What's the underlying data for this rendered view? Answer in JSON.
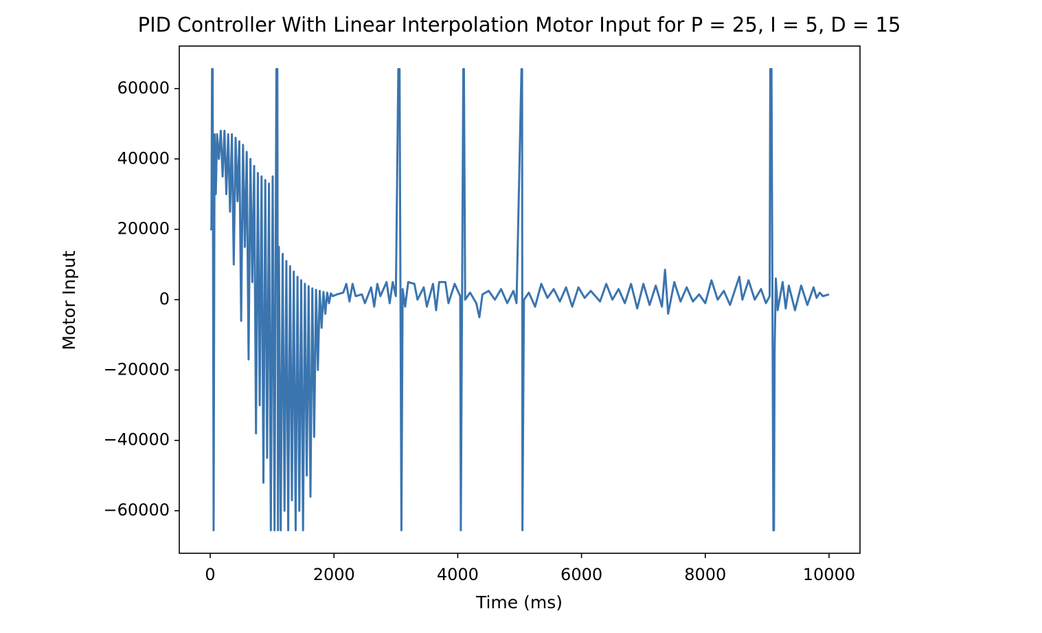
{
  "chart_data": {
    "type": "line",
    "title": "PID Controller With Linear Interpolation Motor Input for P = 25, I = 5, D = 15",
    "xlabel": "Time (ms)",
    "ylabel": "Motor Input",
    "color": "#3b75af",
    "xlim": [
      -500,
      10500
    ],
    "ylim": [
      -72089,
      72089
    ],
    "xticks": [
      0,
      2000,
      4000,
      6000,
      8000,
      10000
    ],
    "yticks": [
      {
        "value": -60000,
        "label": "−60000"
      },
      {
        "value": -40000,
        "label": "−40000"
      },
      {
        "value": -20000,
        "label": "−20000"
      },
      0,
      20000,
      40000,
      60000
    ],
    "x": [
      0,
      20,
      30,
      40,
      55,
      70,
      90,
      110,
      140,
      170,
      200,
      230,
      260,
      290,
      320,
      350,
      380,
      410,
      440,
      470,
      500,
      530,
      560,
      590,
      620,
      650,
      680,
      710,
      740,
      770,
      800,
      830,
      860,
      890,
      920,
      950,
      980,
      1010,
      1040,
      1070,
      1085,
      1095,
      1110,
      1140,
      1170,
      1200,
      1230,
      1260,
      1290,
      1320,
      1350,
      1380,
      1410,
      1440,
      1470,
      1500,
      1530,
      1560,
      1590,
      1620,
      1650,
      1680,
      1710,
      1740,
      1770,
      1800,
      1830,
      1860,
      1890,
      1920,
      1950,
      1980,
      2050,
      2150,
      2200,
      2250,
      2300,
      2350,
      2450,
      2500,
      2600,
      2650,
      2700,
      2750,
      2850,
      2900,
      2950,
      3000,
      3040,
      3060,
      3090,
      3110,
      3150,
      3200,
      3300,
      3350,
      3450,
      3500,
      3600,
      3650,
      3700,
      3800,
      3850,
      3950,
      4040,
      4050,
      4090,
      4100,
      4120,
      4200,
      4300,
      4350,
      4400,
      4500,
      4600,
      4700,
      4800,
      4900,
      4950,
      5030,
      5040,
      5045,
      5070,
      5150,
      5250,
      5350,
      5450,
      5550,
      5650,
      5750,
      5850,
      5950,
      6050,
      6150,
      6300,
      6400,
      6500,
      6600,
      6700,
      6800,
      6900,
      7000,
      7100,
      7200,
      7300,
      7350,
      7400,
      7500,
      7600,
      7700,
      7800,
      7900,
      8000,
      8100,
      8200,
      8300,
      8400,
      8550,
      8600,
      8700,
      8800,
      8900,
      8980,
      9040,
      9050,
      9070,
      9100,
      9110,
      9120,
      9140,
      9170,
      9250,
      9300,
      9350,
      9450,
      9550,
      9650,
      9750,
      9800,
      9850,
      9900,
      10000
    ],
    "y": [
      20000,
      20000,
      65535,
      65535,
      -65535,
      47000,
      30000,
      47000,
      40000,
      48000,
      35000,
      48000,
      30000,
      47000,
      25000,
      47000,
      10000,
      46000,
      28000,
      45000,
      -6000,
      44000,
      15000,
      42000,
      -17000,
      40000,
      5000,
      38000,
      -38000,
      36000,
      -30000,
      35000,
      -52000,
      34000,
      -45000,
      33000,
      -65535,
      35000,
      -65535,
      65535,
      65535,
      -65535,
      15000,
      -65535,
      13000,
      -60000,
      11000,
      -65535,
      9500,
      -57000,
      8000,
      -65535,
      6500,
      -60000,
      5500,
      -65535,
      4500,
      -50000,
      3800,
      -56000,
      3200,
      -39000,
      2800,
      -20000,
      2500,
      -8000,
      2200,
      -4000,
      2000,
      -1000,
      1800,
      1000,
      1500,
      2000,
      4500,
      -500,
      4500,
      1000,
      1500,
      -1000,
      3500,
      -2000,
      4500,
      1000,
      5000,
      -1000,
      5000,
      1000,
      65535,
      65535,
      -65535,
      3000,
      -2000,
      5000,
      4500,
      0,
      3500,
      -2000,
      4500,
      -3000,
      5000,
      5000,
      -1000,
      4500,
      1000,
      -65535,
      65535,
      65535,
      0,
      2000,
      -1000,
      -5000,
      1500,
      2500,
      0,
      3000,
      -1000,
      2500,
      -1000,
      65535,
      65535,
      -65535,
      0,
      2000,
      -2000,
      4500,
      500,
      3000,
      -500,
      3500,
      -2000,
      3500,
      500,
      2500,
      -500,
      4500,
      0,
      3000,
      -1000,
      4500,
      -2500,
      4500,
      -1500,
      4000,
      -2000,
      8500,
      -4000,
      5000,
      -500,
      3500,
      -500,
      1500,
      -1000,
      5500,
      0,
      2500,
      -1500,
      6500,
      0,
      5500,
      0,
      3000,
      -1000,
      1000,
      65535,
      65535,
      -65535,
      -65535,
      -15000,
      6000,
      -3000,
      5000,
      -2500,
      4000,
      -3000,
      4000,
      -1500,
      3500,
      500,
      2000,
      1000,
      1500
    ]
  }
}
